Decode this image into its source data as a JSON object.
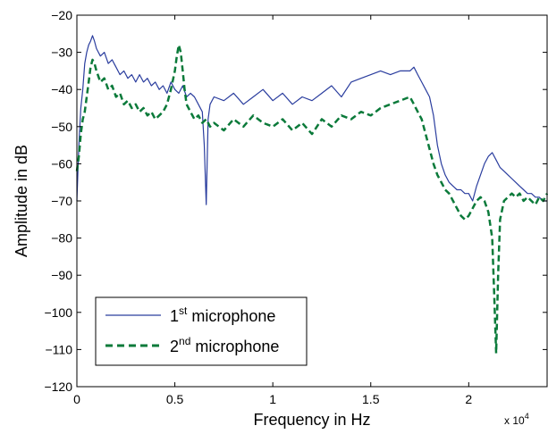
{
  "chart_data": {
    "type": "line",
    "title": "",
    "xlabel": "Frequency in Hz",
    "ylabel": "Amplitude in dB",
    "xlim": [
      0,
      24000
    ],
    "ylim": [
      -120,
      -20
    ],
    "x_exponent_label": {
      "base": "x 10",
      "exp": "4"
    },
    "x_ticks": [
      0,
      5000,
      10000,
      15000,
      20000
    ],
    "x_tick_labels": [
      "0",
      "0.5",
      "1",
      "1.5",
      "2"
    ],
    "y_ticks": [
      -120,
      -110,
      -100,
      -90,
      -80,
      -70,
      -60,
      -50,
      -40,
      -30,
      -20
    ],
    "y_tick_labels": [
      "−120",
      "−110",
      "−100",
      "−90",
      "−80",
      "−70",
      "−60",
      "−50",
      "−40",
      "−30",
      "−20"
    ],
    "grid": false,
    "legend": {
      "placement": "bottom-left",
      "entries": [
        {
          "main": "1",
          "sup": "st",
          "rest": " microphone"
        },
        {
          "main": "2",
          "sup": "nd",
          "rest": " microphone"
        }
      ]
    },
    "series": [
      {
        "name": "1st microphone",
        "color": "#2a3d9e",
        "style": "solid",
        "x": [
          0,
          100,
          200,
          300,
          400,
          500,
          600,
          700,
          800,
          900,
          1000,
          1200,
          1400,
          1600,
          1800,
          2000,
          2200,
          2400,
          2600,
          2800,
          3000,
          3200,
          3400,
          3600,
          3800,
          4000,
          4200,
          4400,
          4600,
          4800,
          5000,
          5200,
          5400,
          5600,
          5800,
          6000,
          6200,
          6400,
          6500,
          6600,
          6700,
          6800,
          7000,
          7500,
          8000,
          8500,
          9000,
          9500,
          10000,
          10500,
          11000,
          11500,
          12000,
          12500,
          13000,
          13500,
          14000,
          14500,
          15000,
          15500,
          16000,
          16500,
          17000,
          17200,
          17400,
          17600,
          17800,
          18000,
          18200,
          18400,
          18600,
          18800,
          19000,
          19200,
          19400,
          19600,
          19800,
          20000,
          20200,
          20400,
          20600,
          20800,
          21000,
          21200,
          21400,
          21600,
          21800,
          22000,
          22200,
          22400,
          22600,
          22800,
          23000,
          23200,
          23400,
          23600,
          23800,
          24000
        ],
        "y": [
          -70,
          -55,
          -45,
          -40,
          -33,
          -30,
          -28,
          -27,
          -25.5,
          -27,
          -29,
          -31,
          -30,
          -33,
          -32,
          -34,
          -36,
          -35,
          -37,
          -36,
          -38,
          -36,
          -38,
          -37,
          -39,
          -38,
          -40,
          -39,
          -41,
          -38,
          -40,
          -41,
          -39,
          -42,
          -41,
          -42,
          -44,
          -46,
          -55,
          -71,
          -48,
          -44,
          -42,
          -43,
          -41,
          -44,
          -42,
          -40,
          -43,
          -41,
          -44,
          -42,
          -43,
          -41,
          -39,
          -42,
          -38,
          -37,
          -36,
          -35,
          -36,
          -35,
          -35,
          -34,
          -36,
          -38,
          -40,
          -42,
          -47,
          -55,
          -60,
          -63,
          -65,
          -66,
          -67,
          -67,
          -68,
          -68,
          -70,
          -66,
          -63,
          -60,
          -58,
          -57,
          -59,
          -61,
          -62,
          -63,
          -64,
          -65,
          -66,
          -67,
          -68,
          -68,
          -69,
          -69,
          -70,
          -70
        ]
      },
      {
        "name": "2nd microphone",
        "color": "#0b7a3a",
        "style": "dashed",
        "x": [
          0,
          100,
          200,
          300,
          400,
          500,
          600,
          700,
          800,
          900,
          1000,
          1200,
          1400,
          1600,
          1800,
          2000,
          2200,
          2400,
          2600,
          2800,
          3000,
          3200,
          3400,
          3600,
          3800,
          4000,
          4200,
          4400,
          4600,
          4800,
          5000,
          5100,
          5200,
          5300,
          5400,
          5500,
          5600,
          5800,
          6000,
          6200,
          6400,
          6600,
          6800,
          7000,
          7500,
          8000,
          8500,
          9000,
          9500,
          10000,
          10500,
          11000,
          11500,
          12000,
          12500,
          13000,
          13500,
          14000,
          14500,
          15000,
          15500,
          16000,
          16500,
          17000,
          17200,
          17400,
          17600,
          17800,
          18000,
          18200,
          18400,
          18600,
          18800,
          19000,
          19200,
          19400,
          19600,
          19800,
          20000,
          20200,
          20400,
          20600,
          20800,
          21000,
          21200,
          21300,
          21400,
          21500,
          21600,
          21800,
          22000,
          22200,
          22400,
          22600,
          22800,
          23000,
          23200,
          23400,
          23600,
          23800,
          24000
        ],
        "y": [
          -62,
          -58,
          -52,
          -48,
          -46,
          -42,
          -38,
          -34,
          -32,
          -33,
          -35,
          -38,
          -37,
          -40,
          -39,
          -42,
          -41,
          -44,
          -43,
          -45,
          -44,
          -46,
          -45,
          -47,
          -46,
          -48,
          -47,
          -46,
          -44,
          -40,
          -35,
          -31,
          -28,
          -30,
          -35,
          -40,
          -44,
          -46,
          -48,
          -47,
          -49,
          -48,
          -50,
          -49,
          -51,
          -48,
          -50,
          -47,
          -49,
          -50,
          -48,
          -51,
          -49,
          -52,
          -48,
          -50,
          -47,
          -48,
          -46,
          -47,
          -45,
          -44,
          -43,
          -42,
          -44,
          -46,
          -48,
          -52,
          -56,
          -60,
          -63,
          -65,
          -67,
          -68,
          -70,
          -72,
          -74,
          -75,
          -74,
          -72,
          -70,
          -69,
          -70,
          -73,
          -80,
          -95,
          -111,
          -90,
          -75,
          -70,
          -69,
          -68,
          -69,
          -68,
          -70,
          -69,
          -70,
          -71,
          -69,
          -70,
          -68
        ]
      }
    ]
  }
}
